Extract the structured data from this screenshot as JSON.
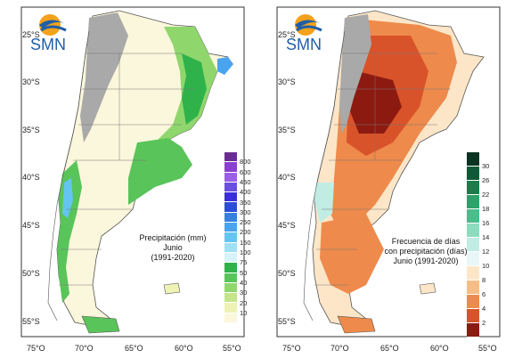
{
  "logo_text": "SMN",
  "latitude_ticks": [
    "25°S",
    "30°S",
    "35°S",
    "40°S",
    "45°S",
    "50°S",
    "55°S"
  ],
  "longitude_ticks": [
    "75°O",
    "70°O",
    "65°O",
    "60°O",
    "55°O"
  ],
  "panels": [
    {
      "title_lines": [
        "Precipitación (mm)",
        "Junio",
        "(1991-2020)"
      ],
      "legend": [
        {
          "label": "800",
          "color": "#6b2d8f"
        },
        {
          "label": "600",
          "color": "#8a3fd1"
        },
        {
          "label": "450",
          "color": "#9a5ee8"
        },
        {
          "label": "400",
          "color": "#6a4fe0"
        },
        {
          "label": "350",
          "color": "#3a2fd6"
        },
        {
          "label": "300",
          "color": "#2b4dd8"
        },
        {
          "label": "250",
          "color": "#3a7fe0"
        },
        {
          "label": "200",
          "color": "#4aa3ee"
        },
        {
          "label": "150",
          "color": "#63c5f0"
        },
        {
          "label": "100",
          "color": "#9fe0f5"
        },
        {
          "label": "75",
          "color": "#d6f3fa"
        },
        {
          "label": "50",
          "color": "#2fb24a"
        },
        {
          "label": "40",
          "color": "#59c45a"
        },
        {
          "label": "30",
          "color": "#8fd66d"
        },
        {
          "label": "20",
          "color": "#c4e58a"
        },
        {
          "label": "10",
          "color": "#eef2b5"
        },
        {
          "label": "",
          "color": "#fbf7dc"
        }
      ]
    },
    {
      "title_lines": [
        "Frecuencia de días",
        "con precipitación (días)",
        "Junio (1991-2020)"
      ],
      "legend": [
        {
          "label": "30",
          "color": "#0a3322"
        },
        {
          "label": "26",
          "color": "#0f5a36"
        },
        {
          "label": "22",
          "color": "#1a7d4a"
        },
        {
          "label": "18",
          "color": "#2aa36a"
        },
        {
          "label": "16",
          "color": "#45bf8c"
        },
        {
          "label": "14",
          "color": "#8ddcc0"
        },
        {
          "label": "12",
          "color": "#c0ece3"
        },
        {
          "label": "10",
          "color": "#e8f6f7"
        },
        {
          "label": "8",
          "color": "#fde6c8"
        },
        {
          "label": "6",
          "color": "#f7bd86"
        },
        {
          "label": "4",
          "color": "#ee8a4b"
        },
        {
          "label": "2",
          "color": "#d9532a"
        },
        {
          "label": "",
          "color": "#8c1a10"
        }
      ]
    }
  ],
  "colors": {
    "land_outline": "#555555",
    "andes_gray": "#a9a9a9",
    "logo_blue": "#1f5fa8",
    "logo_orange": "#f4a21b"
  }
}
